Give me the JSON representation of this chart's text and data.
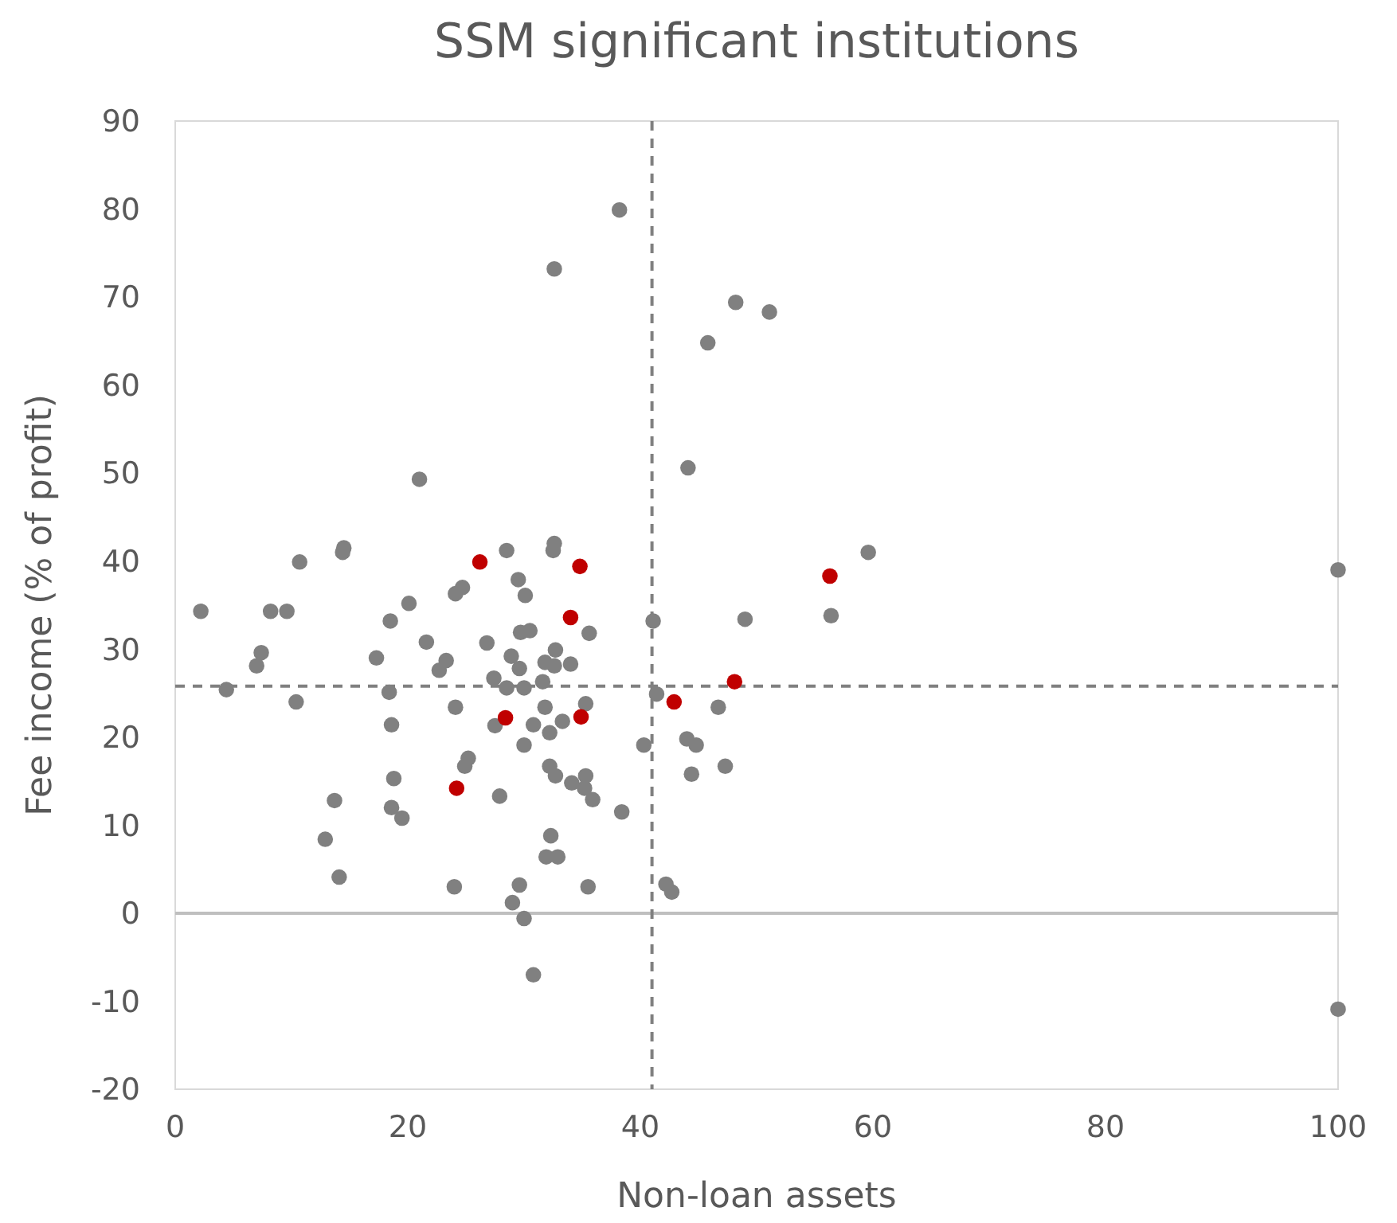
{
  "chart_data": {
    "type": "scatter",
    "title": "SSM significant institutions",
    "xlabel": "Non-loan assets",
    "ylabel": "Fee income (% of profit)",
    "xlim": [
      0,
      100
    ],
    "xticks": [
      0,
      20,
      40,
      60,
      80,
      100
    ],
    "ylim": [
      -20,
      90
    ],
    "yticks": [
      -20,
      -10,
      0,
      10,
      20,
      30,
      40,
      50,
      60,
      70,
      80,
      90
    ],
    "grid": false,
    "marker": "circle",
    "series": [
      {
        "color": "#808080",
        "x": [
          2.2,
          4.4,
          7.0,
          7.4,
          8.2,
          9.6,
          10.7,
          10.4,
          12.9,
          13.7,
          14.1,
          14.4,
          14.5,
          17.3,
          18.4,
          18.5,
          18.6,
          18.8,
          18.6,
          19.5,
          20.1,
          21.0,
          21.6,
          22.7,
          23.3,
          24.1,
          24.7,
          24.1,
          24.0,
          24.9,
          25.2,
          26.8,
          27.4,
          27.5,
          27.9,
          28.5,
          28.5,
          28.9,
          29.0,
          29.5,
          29.6,
          29.6,
          29.7,
          30.1,
          30.0,
          30.0,
          30.0,
          30.5,
          30.8,
          30.8,
          31.8,
          31.8,
          31.6,
          32.2,
          32.2,
          32.3,
          31.9,
          32.5,
          32.6,
          32.6,
          32.7,
          32.9,
          32.7,
          32.6,
          33.3,
          34.0,
          34.1,
          35.2,
          35.3,
          35.3,
          35.6,
          35.5,
          35.9,
          38.2,
          38.4,
          40.3,
          41.1,
          41.4,
          42.2,
          42.7,
          44.1,
          44.0,
          44.8,
          44.4,
          45.8,
          46.7,
          47.3,
          48.2,
          49.0,
          51.1,
          56.4,
          59.6,
          100,
          100
        ],
        "values": [
          34.3,
          25.4,
          28.1,
          29.6,
          34.3,
          34.3,
          39.9,
          24.0,
          8.4,
          12.8,
          4.1,
          41.0,
          41.5,
          29.0,
          25.1,
          33.2,
          21.4,
          15.3,
          12.0,
          10.8,
          35.2,
          49.3,
          30.8,
          27.6,
          28.7,
          36.3,
          37.0,
          23.4,
          3.0,
          16.7,
          17.6,
          30.7,
          26.7,
          21.3,
          13.3,
          41.2,
          25.6,
          29.2,
          1.2,
          37.9,
          27.8,
          3.2,
          31.9,
          36.1,
          25.6,
          19.1,
          -0.6,
          32.1,
          21.4,
          -7.0,
          28.5,
          23.4,
          26.3,
          20.5,
          16.7,
          8.8,
          6.4,
          41.2,
          42.0,
          73.2,
          15.6,
          6.4,
          29.9,
          28.1,
          21.8,
          28.3,
          14.8,
          14.2,
          23.8,
          15.6,
          31.8,
          3.0,
          12.9,
          79.9,
          11.5,
          19.1,
          33.2,
          24.9,
          3.3,
          2.4,
          50.6,
          19.8,
          19.1,
          15.8,
          64.8,
          23.4,
          16.7,
          69.4,
          33.4,
          68.3,
          33.8,
          41.0,
          39.0,
          -10.9
        ]
      },
      {
        "color": "#c00000",
        "x": [
          26.2,
          34.8,
          34.0,
          28.4,
          34.9,
          24.2,
          42.9,
          48.1,
          56.3
        ],
        "values": [
          39.9,
          39.4,
          33.6,
          22.2,
          22.3,
          14.2,
          24.0,
          26.3,
          38.3
        ]
      }
    ],
    "ref_lines": [
      {
        "axis": "y",
        "value": 0,
        "color": "#bfbfbf",
        "line_style": "solid"
      },
      {
        "axis": "x",
        "value": 41,
        "color": "#808080",
        "line_style": "dashed"
      },
      {
        "axis": "y",
        "value": 25.8,
        "color": "#808080",
        "line_style": "dashed"
      }
    ]
  }
}
